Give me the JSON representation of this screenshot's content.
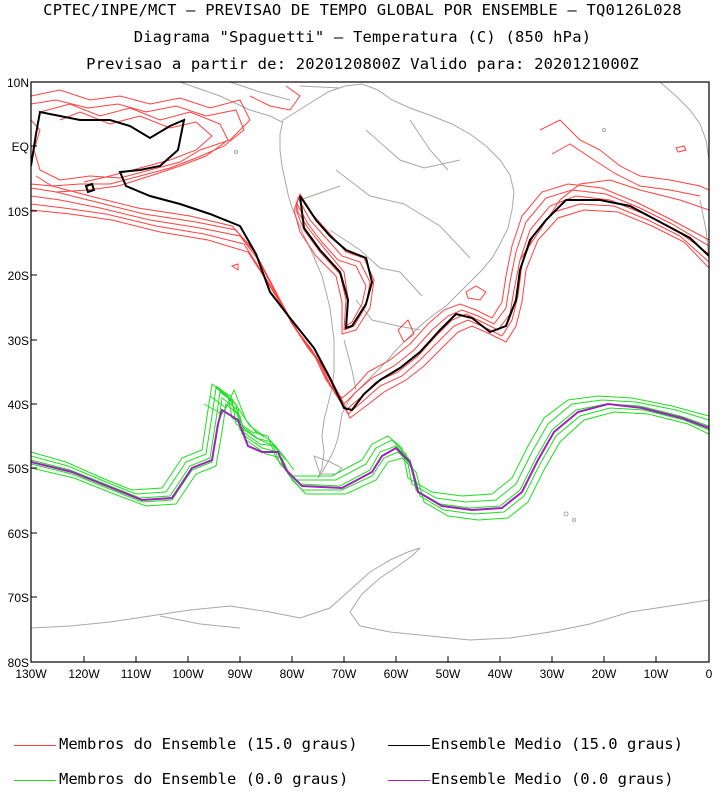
{
  "titles": {
    "line1": "CPTEC/INPE/MCT – PREVISAO DE TEMPO GLOBAL POR ENSEMBLE – TQ0126L028",
    "line2": "Diagrama \"Spaguetti\" – Temperatura (C) (850 hPa)",
    "line3": "Previsao a partir de: 2020120800Z  Valido para: 2020121000Z"
  },
  "axes": {
    "lat_labels": [
      "10N",
      "EQ",
      "10S",
      "20S",
      "30S",
      "40S",
      "50S",
      "60S",
      "70S",
      "80S"
    ],
    "lon_labels": [
      "130W",
      "120W",
      "110W",
      "100W",
      "90W",
      "80W",
      "70W",
      "60W",
      "50W",
      "40W",
      "30W",
      "20W",
      "10W",
      "0"
    ]
  },
  "legend": {
    "members_15": "Membros do Ensemble (15.0 graus)",
    "mean_15": "Ensemble Medio (15.0 graus)",
    "members_0": "Membros do Ensemble (0.0 graus)",
    "mean_0": "Ensemble Medio (0.0 graus)"
  },
  "colors": {
    "members_15": "#ff4040",
    "mean_15": "#000000",
    "members_0": "#20dd20",
    "mean_0": "#a020c0",
    "coast": "#a8a8a8"
  }
}
